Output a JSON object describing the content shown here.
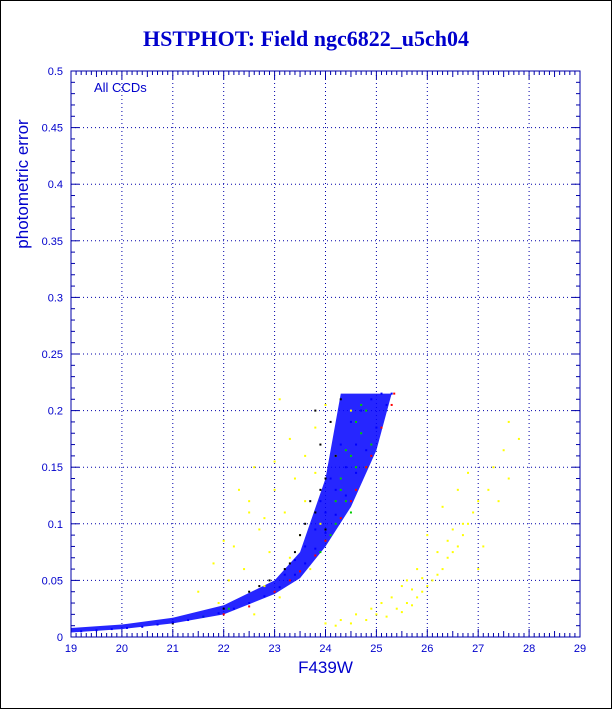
{
  "chart_data": {
    "type": "scatter",
    "title": "HSTPHOT: Field ngc6822_u5ch04",
    "xlabel": "F439W",
    "ylabel": "photometric error",
    "annotation": "All CCDs",
    "xlim": [
      19,
      29
    ],
    "ylim": [
      0,
      0.5
    ],
    "xticks": [
      "19",
      "20",
      "21",
      "22",
      "23",
      "24",
      "25",
      "26",
      "27",
      "28",
      "29"
    ],
    "yticks": [
      "0",
      "0.05",
      "0.1",
      "0.15",
      "0.2",
      "0.25",
      "0.3",
      "0.35",
      "0.4",
      "0.45",
      "0.5"
    ],
    "grid": true,
    "series": [
      {
        "color": "#ffff00",
        "points": [
          [
            23.3,
            0.175
          ],
          [
            23.6,
            0.16
          ],
          [
            22.5,
            0.12
          ],
          [
            23.0,
            0.13
          ],
          [
            22.2,
            0.08
          ],
          [
            23.8,
            0.185
          ],
          [
            23.1,
            0.21
          ],
          [
            22.8,
            0.105
          ],
          [
            23.4,
            0.14
          ],
          [
            22.6,
            0.15
          ],
          [
            24.0,
            0.205
          ],
          [
            21.8,
            0.065
          ],
          [
            22.1,
            0.05
          ],
          [
            23.9,
            0.1
          ],
          [
            22.9,
            0.075
          ],
          [
            23.5,
            0.09
          ],
          [
            21.5,
            0.04
          ],
          [
            22.4,
            0.06
          ],
          [
            23.2,
            0.11
          ],
          [
            22.7,
            0.095
          ],
          [
            23.6,
            0.12
          ],
          [
            24.2,
            0.16
          ],
          [
            23.7,
            0.06
          ],
          [
            22.3,
            0.13
          ],
          [
            22.0,
            0.085
          ],
          [
            22.8,
            0.045
          ],
          [
            23.3,
            0.07
          ],
          [
            21.9,
            0.03
          ],
          [
            22.6,
            0.02
          ],
          [
            23.1,
            0.035
          ],
          [
            24.5,
            0.2
          ],
          [
            23.0,
            0.155
          ],
          [
            22.5,
            0.11
          ],
          [
            23.8,
            0.145
          ],
          [
            24.2,
            0.01
          ],
          [
            24.5,
            0.012
          ],
          [
            24.8,
            0.015
          ],
          [
            25.0,
            0.02
          ],
          [
            25.2,
            0.018
          ],
          [
            25.4,
            0.025
          ],
          [
            25.5,
            0.022
          ],
          [
            25.6,
            0.03
          ],
          [
            25.7,
            0.028
          ],
          [
            25.8,
            0.035
          ],
          [
            25.9,
            0.04
          ],
          [
            26.0,
            0.045
          ],
          [
            26.1,
            0.05
          ],
          [
            26.2,
            0.055
          ],
          [
            26.3,
            0.06
          ],
          [
            26.4,
            0.07
          ],
          [
            26.5,
            0.075
          ],
          [
            26.6,
            0.08
          ],
          [
            26.7,
            0.09
          ],
          [
            26.8,
            0.1
          ],
          [
            26.9,
            0.11
          ],
          [
            27.0,
            0.12
          ],
          [
            27.2,
            0.13
          ],
          [
            27.4,
            0.12
          ],
          [
            27.6,
            0.14
          ],
          [
            27.8,
            0.175
          ],
          [
            27.5,
            0.165
          ],
          [
            27.3,
            0.15
          ],
          [
            26.8,
            0.145
          ],
          [
            26.6,
            0.13
          ],
          [
            26.3,
            0.115
          ],
          [
            26.0,
            0.09
          ],
          [
            25.8,
            0.06
          ],
          [
            25.5,
            0.045
          ],
          [
            25.1,
            0.03
          ],
          [
            24.9,
            0.025
          ],
          [
            24.6,
            0.02
          ],
          [
            24.3,
            0.015
          ],
          [
            24.0,
            0.012
          ],
          [
            25.3,
            0.035
          ],
          [
            25.6,
            0.05
          ],
          [
            26.2,
            0.075
          ],
          [
            26.4,
            0.085
          ],
          [
            26.7,
            0.1
          ],
          [
            27.1,
            0.08
          ],
          [
            27.6,
            0.19
          ],
          [
            27.0,
            0.06
          ],
          [
            26.5,
            0.095
          ],
          [
            25.9,
            0.052
          ],
          [
            25.7,
            0.042
          ]
        ]
      },
      {
        "color": "#000000",
        "points": [
          [
            23.8,
            0.2
          ],
          [
            23.9,
            0.17
          ],
          [
            24.0,
            0.14
          ],
          [
            23.7,
            0.12
          ],
          [
            23.6,
            0.1
          ],
          [
            23.5,
            0.09
          ],
          [
            24.1,
            0.19
          ],
          [
            23.4,
            0.075
          ],
          [
            23.2,
            0.06
          ],
          [
            22.9,
            0.05
          ],
          [
            22.5,
            0.04
          ],
          [
            24.3,
            0.21
          ],
          [
            24.2,
            0.16
          ],
          [
            23.9,
            0.13
          ],
          [
            23.8,
            0.11
          ],
          [
            24.0,
            0.095
          ],
          [
            23.3,
            0.065
          ],
          [
            22.7,
            0.045
          ],
          [
            22.0,
            0.025
          ],
          [
            21.0,
            0.012
          ]
        ]
      },
      {
        "color": "#00cc00",
        "points": [
          [
            24.3,
            0.13
          ],
          [
            24.5,
            0.16
          ],
          [
            24.6,
            0.15
          ],
          [
            24.4,
            0.12
          ],
          [
            24.7,
            0.18
          ],
          [
            24.2,
            0.1
          ],
          [
            24.8,
            0.2
          ],
          [
            24.9,
            0.17
          ],
          [
            24.5,
            0.11
          ],
          [
            24.1,
            0.09
          ],
          [
            24.6,
            0.19
          ],
          [
            24.3,
            0.14
          ],
          [
            24.0,
            0.085
          ],
          [
            24.7,
            0.205
          ],
          [
            24.4,
            0.165
          ],
          [
            23.9,
            0.075
          ],
          [
            24.8,
            0.15
          ],
          [
            24.2,
            0.12
          ],
          [
            22.1,
            0.025
          ],
          [
            21.6,
            0.018
          ]
        ]
      },
      {
        "color": "#0000ff",
        "points": [
          [
            19.2,
            0.005
          ],
          [
            19.5,
            0.006
          ],
          [
            19.8,
            0.007
          ],
          [
            20.1,
            0.008
          ],
          [
            20.4,
            0.009
          ],
          [
            20.7,
            0.011
          ],
          [
            21.0,
            0.013
          ],
          [
            21.3,
            0.015
          ],
          [
            21.6,
            0.018
          ],
          [
            21.9,
            0.021
          ],
          [
            22.2,
            0.025
          ],
          [
            22.5,
            0.03
          ],
          [
            22.8,
            0.036
          ],
          [
            23.1,
            0.044
          ],
          [
            23.4,
            0.055
          ],
          [
            23.6,
            0.065
          ],
          [
            23.8,
            0.078
          ],
          [
            24.0,
            0.092
          ],
          [
            24.2,
            0.108
          ],
          [
            24.4,
            0.125
          ],
          [
            24.6,
            0.145
          ],
          [
            24.8,
            0.165
          ],
          [
            25.0,
            0.185
          ],
          [
            25.2,
            0.205
          ],
          [
            25.3,
            0.215
          ],
          [
            24.3,
            0.17
          ],
          [
            24.5,
            0.19
          ],
          [
            24.7,
            0.2
          ],
          [
            24.1,
            0.14
          ],
          [
            23.9,
            0.12
          ],
          [
            25.1,
            0.215
          ],
          [
            24.9,
            0.21
          ],
          [
            24.6,
            0.17
          ],
          [
            24.4,
            0.15
          ],
          [
            24.2,
            0.13
          ],
          [
            24.0,
            0.11
          ],
          [
            23.8,
            0.095
          ],
          [
            23.6,
            0.08
          ],
          [
            23.4,
            0.068
          ],
          [
            23.2,
            0.055
          ]
        ]
      },
      {
        "color": "#ff0000",
        "points": [
          [
            22.0,
            0.02
          ],
          [
            22.5,
            0.027
          ],
          [
            23.0,
            0.04
          ],
          [
            23.5,
            0.058
          ],
          [
            24.0,
            0.085
          ],
          [
            24.3,
            0.105
          ],
          [
            24.6,
            0.13
          ],
          [
            24.9,
            0.16
          ],
          [
            25.1,
            0.185
          ],
          [
            25.3,
            0.205
          ],
          [
            25.35,
            0.215
          ],
          [
            24.8,
            0.15
          ],
          [
            24.5,
            0.12
          ],
          [
            23.8,
            0.072
          ],
          [
            23.3,
            0.05
          ]
        ]
      }
    ],
    "dense_bands": [
      {
        "color": "#0000ff",
        "lower_edge": [
          [
            19.0,
            0.004
          ],
          [
            20.0,
            0.007
          ],
          [
            21.0,
            0.012
          ],
          [
            22.0,
            0.02
          ],
          [
            23.0,
            0.038
          ],
          [
            23.5,
            0.052
          ],
          [
            24.0,
            0.08
          ],
          [
            24.5,
            0.115
          ],
          [
            25.0,
            0.165
          ],
          [
            25.3,
            0.215
          ]
        ],
        "upper_edge": [
          [
            19.0,
            0.008
          ],
          [
            20.0,
            0.011
          ],
          [
            21.0,
            0.017
          ],
          [
            22.0,
            0.028
          ],
          [
            23.0,
            0.05
          ],
          [
            23.5,
            0.075
          ],
          [
            24.0,
            0.14
          ],
          [
            24.3,
            0.215
          ],
          [
            25.3,
            0.215
          ]
        ]
      }
    ]
  }
}
